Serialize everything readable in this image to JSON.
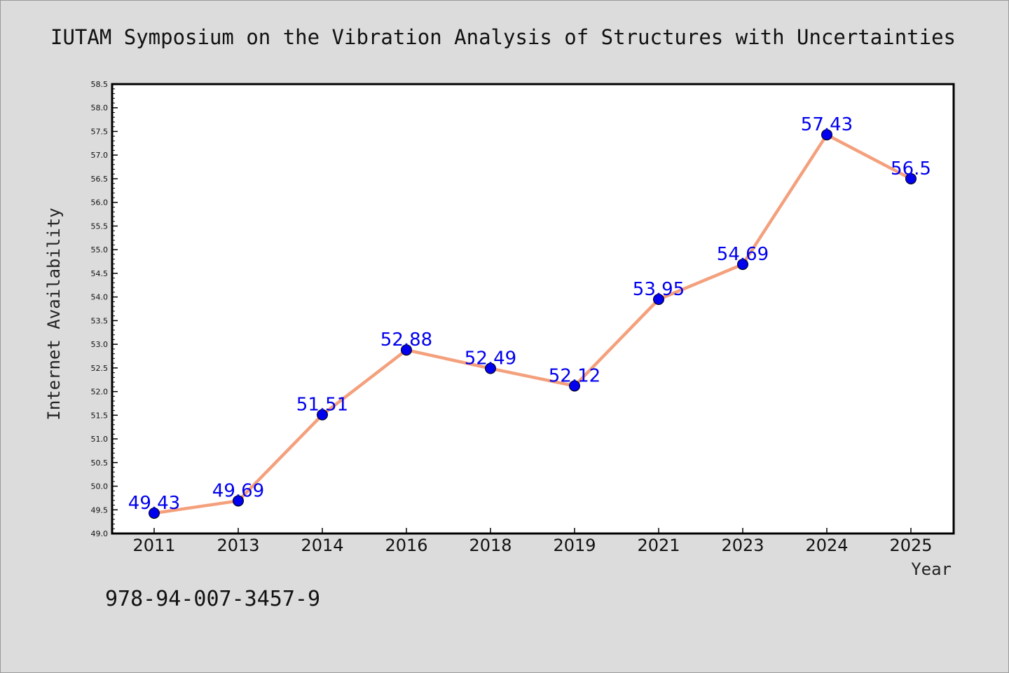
{
  "title": "IUTAM Symposium on the Vibration Analysis of Structures with Uncertainties",
  "isbn": "978-94-007-3457-9",
  "colors": {
    "background": "#dcdcdc",
    "plot_background": "#ffffff",
    "line": "#f4a07c",
    "marker": "#0000ee",
    "data_label": "#0000ee"
  },
  "chart_data": {
    "type": "line",
    "title": "IUTAM Symposium on the Vibration Analysis of Structures with Uncertainties",
    "xlabel": "Year",
    "ylabel": "Internet Availability",
    "categories": [
      "2011",
      "2013",
      "2014",
      "2016",
      "2018",
      "2019",
      "2021",
      "2023",
      "2024",
      "2025"
    ],
    "values": [
      49.43,
      49.69,
      51.51,
      52.88,
      52.49,
      52.12,
      53.95,
      54.69,
      57.43,
      56.5
    ],
    "data_labels": [
      "49.43",
      "49.69",
      "51.51",
      "52.88",
      "52.49",
      "52.12",
      "53.95",
      "54.69",
      "57.43",
      "56.5"
    ],
    "ylim": [
      49.0,
      58.5
    ],
    "yticks": [
      "49.0",
      "49.5",
      "50.0",
      "50.5",
      "51.0",
      "51.5",
      "52.0",
      "52.5",
      "53.0",
      "53.5",
      "54.0",
      "54.5",
      "55.0",
      "55.5",
      "56.0",
      "56.5",
      "57.0",
      "57.5",
      "58.0",
      "58.5"
    ],
    "grid": false,
    "legend": "none"
  }
}
